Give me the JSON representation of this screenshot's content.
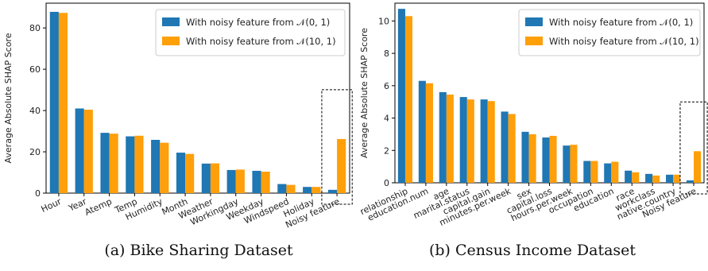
{
  "colors": {
    "series1": "#1f77b4",
    "series2": "#ff9f0a",
    "axis": "#000000",
    "highlight_box": "#000000"
  },
  "captions": {
    "a": "(a) Bike Sharing Dataset",
    "b": "(b) Census Income Dataset"
  },
  "chart_data": [
    {
      "type": "bar",
      "title": "",
      "xlabel": "",
      "ylabel": "Average Absolute SHAP Score",
      "ylim": [
        0,
        92
      ],
      "yticks": [
        0,
        20,
        40,
        60,
        80
      ],
      "legend_position": "upper-right",
      "grid": false,
      "categories": [
        "Hour",
        "Year",
        "Atemp",
        "Temp",
        "Humidity",
        "Month",
        "Weather",
        "Workingday",
        "Weekday",
        "Windspeed",
        "Holiday",
        "Noisy feature"
      ],
      "series": [
        {
          "name": "With noisy feature from 𝒩(0, 1)",
          "values": [
            87.8,
            41.0,
            29.2,
            27.5,
            25.8,
            19.6,
            14.3,
            11.2,
            10.8,
            4.4,
            3.0,
            1.6
          ]
        },
        {
          "name": "With noisy feature from 𝒩(10, 1)",
          "values": [
            87.3,
            40.4,
            28.8,
            27.8,
            24.4,
            19.0,
            14.4,
            11.4,
            10.4,
            4.0,
            3.0,
            26.2
          ]
        }
      ],
      "highlight_category": "Noisy feature"
    },
    {
      "type": "bar",
      "title": "",
      "xlabel": "",
      "ylabel": "Average Absolute SHAP Score",
      "ylim": [
        0,
        11.1
      ],
      "yticks": [
        0,
        2,
        4,
        6,
        8,
        10
      ],
      "legend_position": "upper-right",
      "grid": false,
      "categories": [
        "relationship",
        "education.num",
        "age",
        "marital.status",
        "capital.gain",
        "minutes.per.week",
        "sex",
        "capital.loss",
        "hours.per.week",
        "occupation",
        "education",
        "race",
        "workclass",
        "native.country",
        "Noisy feature"
      ],
      "series": [
        {
          "name": "With noisy feature from 𝒩(0, 1)",
          "values": [
            10.75,
            6.3,
            5.6,
            5.3,
            5.15,
            4.4,
            3.15,
            2.8,
            2.3,
            1.35,
            1.2,
            0.75,
            0.55,
            0.5,
            0.15
          ]
        },
        {
          "name": "With noisy feature from 𝒩(10, 1)",
          "values": [
            10.3,
            6.15,
            5.45,
            5.15,
            5.05,
            4.25,
            3.0,
            2.9,
            2.35,
            1.35,
            1.3,
            0.65,
            0.45,
            0.5,
            1.95
          ]
        }
      ],
      "highlight_category": "Noisy feature"
    }
  ]
}
